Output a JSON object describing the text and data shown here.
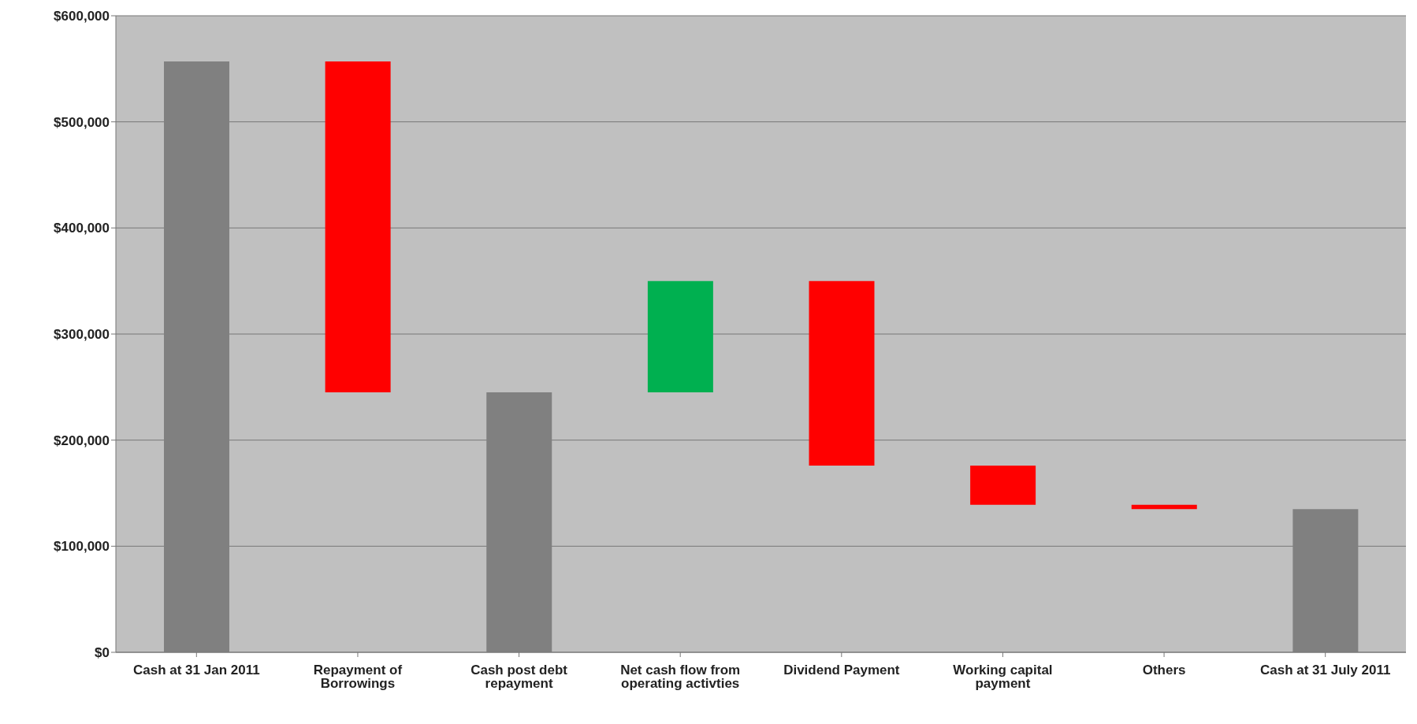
{
  "chart_data": {
    "type": "bar",
    "categories": [
      "Cash  at 31 Jan 2011",
      "Repayment of Borrowings",
      "Cash post debt repayment",
      "Net cash flow from operating activties",
      "Dividend Payment",
      "Working capital payment",
      "Others",
      "Cash  at 31 July 2011"
    ],
    "values": [
      557000,
      312000,
      245000,
      105000,
      174000,
      37000,
      4000,
      135000
    ],
    "base": [
      null,
      245000,
      null,
      245000,
      176000,
      139000,
      135000,
      null
    ],
    "colors": [
      "#808080",
      "#ff0000",
      "#808080",
      "#00b050",
      "#ff0000",
      "#ff0000",
      "#ff0000",
      "#808080"
    ],
    "ylim": [
      0,
      600000
    ],
    "yticks": [
      {
        "value": 0,
        "label": "$0"
      },
      {
        "value": 100000,
        "label": "$100,000"
      },
      {
        "value": 200000,
        "label": "$200,000"
      },
      {
        "value": 300000,
        "label": "$300,000"
      },
      {
        "value": 400000,
        "label": "$400,000"
      },
      {
        "value": 500000,
        "label": "$500,000"
      },
      {
        "value": 600000,
        "label": "$600,000"
      }
    ],
    "grid": "y",
    "legend": false
  }
}
